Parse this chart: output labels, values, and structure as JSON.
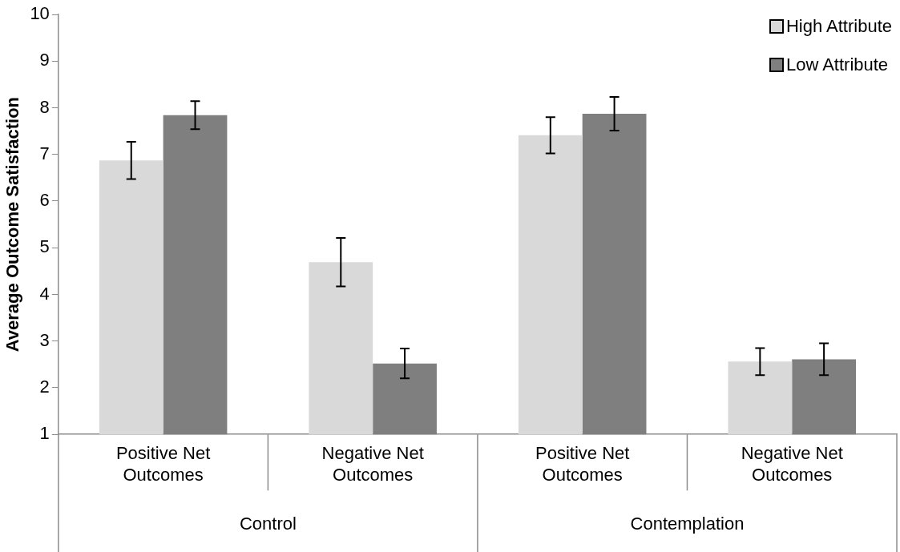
{
  "chart_data": {
    "type": "bar",
    "ylabel": "Average Outcome Satisfaction",
    "categories": [
      "Positive Net Outcomes",
      "Negative Net Outcomes",
      "Positive Net Outcomes",
      "Negative Net Outcomes"
    ],
    "annotations": [
      "Control",
      "Contemplation"
    ],
    "series": [
      {
        "name": "High Attribute",
        "color": "#d9d9d9",
        "values": [
          6.87,
          4.69,
          7.41,
          2.56
        ],
        "errors": [
          0.4,
          0.52,
          0.39,
          0.29
        ]
      },
      {
        "name": "Low Attribute",
        "color": "#7f7f7f",
        "values": [
          7.84,
          2.52,
          7.87,
          2.61
        ],
        "errors": [
          0.3,
          0.32,
          0.36,
          0.34
        ]
      }
    ],
    "ylim": [
      1,
      10
    ],
    "yticks": [
      1,
      2,
      3,
      4,
      5,
      6,
      7,
      8,
      9,
      10
    ],
    "grid": false,
    "legend": "top right"
  }
}
